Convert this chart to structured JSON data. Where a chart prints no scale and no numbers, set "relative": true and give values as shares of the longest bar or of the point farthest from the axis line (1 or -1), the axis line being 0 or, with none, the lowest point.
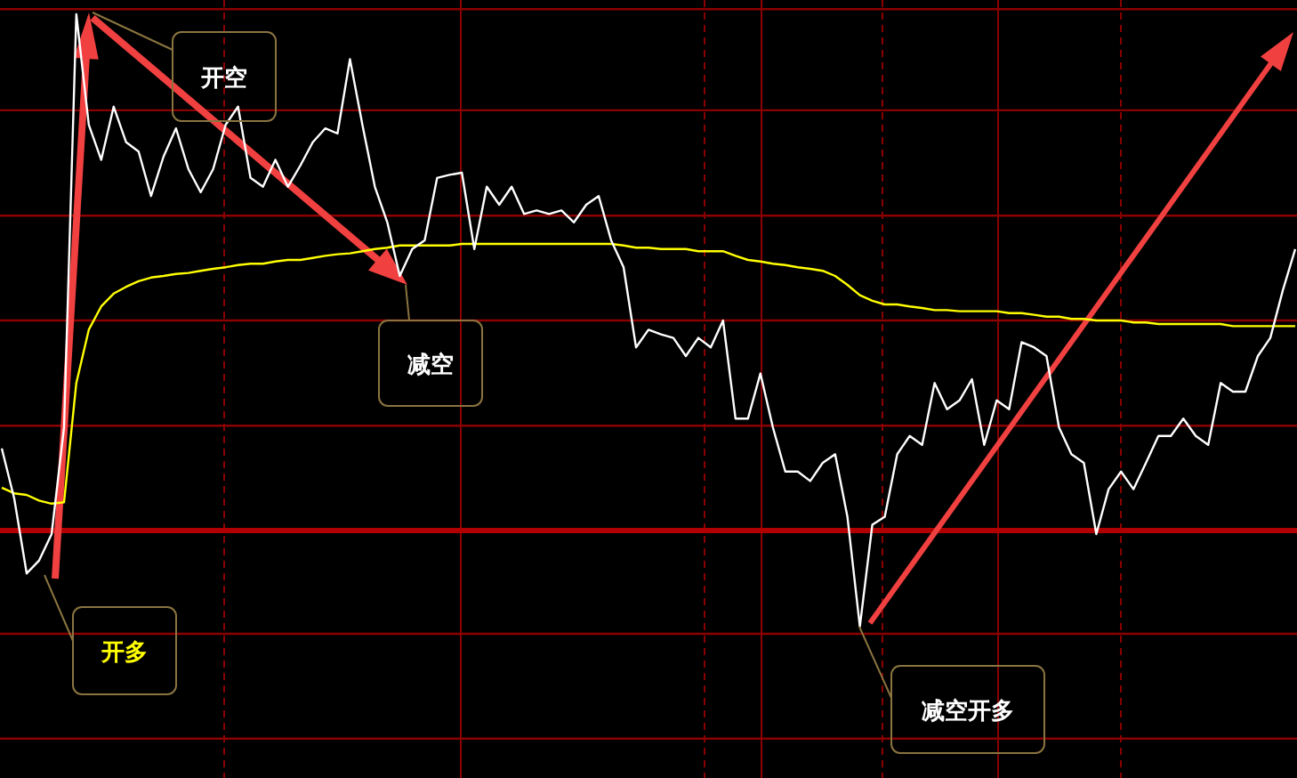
{
  "chart_data": {
    "type": "line",
    "relative": true,
    "grid": true,
    "categories": [
      null,
      null,
      null,
      null,
      null,
      null,
      null,
      null,
      null,
      null,
      null,
      null,
      null,
      null,
      null,
      null,
      null,
      null,
      null,
      null,
      null,
      null,
      null,
      null,
      null,
      null,
      null,
      null,
      null,
      null,
      null,
      null,
      null,
      null,
      null,
      null,
      null,
      null,
      null,
      null,
      null,
      null,
      null,
      null,
      null,
      null,
      null,
      null,
      null,
      null,
      null,
      null,
      null,
      null,
      null,
      null,
      null,
      null,
      null,
      null,
      null,
      null,
      null,
      null,
      null,
      null,
      null,
      null,
      null,
      null,
      null,
      null,
      null,
      null,
      null,
      null,
      null,
      null,
      null,
      null,
      null,
      null,
      null,
      null,
      null,
      null,
      null,
      null,
      null,
      null,
      null,
      null,
      null,
      null,
      null,
      null,
      null,
      null,
      null,
      null,
      null,
      null,
      null,
      null,
      null
    ],
    "series": [
      {
        "color": "#ffffff",
        "values": [
          0.159,
          0.062,
          -0.083,
          -0.058,
          -0.007,
          0.2,
          1.0,
          0.786,
          0.718,
          0.821,
          0.752,
          0.734,
          0.648,
          0.724,
          0.779,
          0.7,
          0.655,
          0.7,
          0.786,
          0.821,
          0.683,
          0.666,
          0.718,
          0.666,
          0.707,
          0.752,
          0.779,
          0.769,
          0.913,
          0.786,
          0.666,
          0.597,
          0.493,
          0.545,
          0.562,
          0.683,
          0.689,
          0.693,
          0.545,
          0.666,
          0.631,
          0.666,
          0.613,
          0.62,
          0.613,
          0.62,
          0.597,
          0.631,
          0.648,
          0.562,
          0.51,
          0.355,
          0.389,
          0.38,
          0.373,
          0.338,
          0.373,
          0.355,
          0.407,
          0.217,
          0.217,
          0.304,
          0.2,
          0.114,
          0.114,
          0.096,
          0.131,
          0.148,
          0.027,
          -0.186,
          0.011,
          0.027,
          0.148,
          0.183,
          0.166,
          0.286,
          0.235,
          0.252,
          0.293,
          0.166,
          0.252,
          0.235,
          0.365,
          0.355,
          0.338,
          0.2,
          0.148,
          0.131,
          -0.007,
          0.08,
          0.114,
          0.08,
          0.131,
          0.183,
          0.183,
          0.217,
          0.183,
          0.166,
          0.286,
          0.269,
          0.269,
          0.338,
          0.373,
          0.465,
          0.545
        ]
      },
      {
        "color": "#ffff00",
        "values": [
          0.083,
          0.072,
          0.069,
          0.058,
          0.052,
          0.055,
          0.286,
          0.389,
          0.434,
          0.459,
          0.472,
          0.483,
          0.49,
          0.493,
          0.497,
          0.499,
          0.503,
          0.507,
          0.51,
          0.514,
          0.517,
          0.517,
          0.521,
          0.524,
          0.524,
          0.528,
          0.532,
          0.535,
          0.537,
          0.541,
          0.545,
          0.548,
          0.552,
          0.552,
          0.552,
          0.552,
          0.552,
          0.555,
          0.555,
          0.555,
          0.555,
          0.555,
          0.555,
          0.555,
          0.555,
          0.555,
          0.555,
          0.555,
          0.555,
          0.555,
          0.552,
          0.548,
          0.548,
          0.545,
          0.545,
          0.545,
          0.541,
          0.541,
          0.541,
          0.532,
          0.524,
          0.521,
          0.517,
          0.514,
          0.51,
          0.507,
          0.503,
          0.493,
          0.476,
          0.456,
          0.445,
          0.438,
          0.438,
          0.434,
          0.431,
          0.427,
          0.427,
          0.425,
          0.425,
          0.425,
          0.425,
          0.421,
          0.421,
          0.418,
          0.414,
          0.414,
          0.41,
          0.41,
          0.407,
          0.407,
          0.407,
          0.403,
          0.403,
          0.4,
          0.4,
          0.4,
          0.4,
          0.4,
          0.4,
          0.396,
          0.396,
          0.396,
          0.396,
          0.396,
          0.396
        ]
      }
    ],
    "ref_lines": [
      {
        "axis": "y",
        "value": 1.01,
        "color": "#8b0000"
      },
      {
        "axis": "y",
        "value": 0.814,
        "color": "#8b0000"
      },
      {
        "axis": "y",
        "value": 0.61,
        "color": "#8b0000"
      },
      {
        "axis": "y",
        "value": 0.407,
        "color": "#8b0000"
      },
      {
        "axis": "y",
        "value": 0.203,
        "color": "#8b0000"
      },
      {
        "axis": "y",
        "value": 0,
        "color": "#b00000"
      },
      {
        "axis": "y",
        "value": -0.2,
        "color": "#8b0000"
      },
      {
        "axis": "y",
        "value": -0.403,
        "color": "#8b0000"
      }
    ],
    "annotations": [
      "开空",
      "减空",
      "开多",
      "减空开多"
    ]
  }
}
